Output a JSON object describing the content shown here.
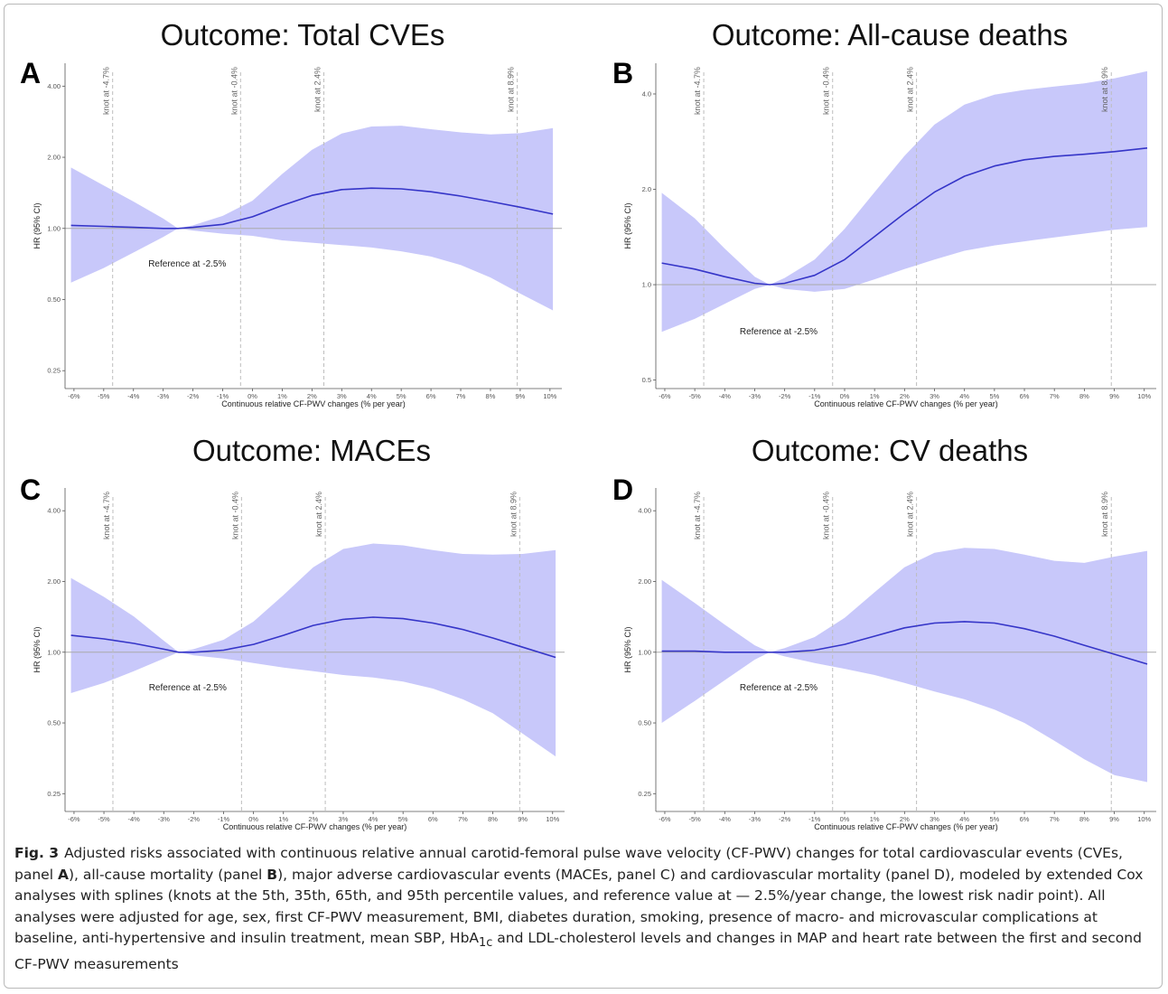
{
  "colors": {
    "band": "#c8c8fa",
    "line": "#3535c8",
    "ref_line": "#aaaaaa",
    "knot_line": "#bdbdbd",
    "axis": "#555555"
  },
  "chart_data": [
    {
      "panel_letter": "A",
      "title": "Outcome: Total CVEs",
      "type": "line",
      "xlabel": "Continuous relative CF-PWV changes (% per year)",
      "ylabel": "HR (95% CI)",
      "x_ticks": [
        "-6%",
        "-5%",
        "-4%",
        "-3%",
        "-2%",
        "-1%",
        "0%",
        "1%",
        "2%",
        "3%",
        "4%",
        "5%",
        "6%",
        "7%",
        "8%",
        "9%",
        "10%"
      ],
      "y_ticks": [
        "0.25",
        "0.50",
        "1.00",
        "2.00",
        "4.00"
      ],
      "y_tick_values": [
        0.25,
        0.5,
        1.0,
        2.0,
        4.0
      ],
      "xlim": [
        -6.3,
        10.4
      ],
      "ylim": [
        0.21,
        5.0
      ],
      "y_scale": "log",
      "knots": [
        -4.7,
        -0.4,
        2.4,
        8.9
      ],
      "knot_labels": [
        "knot at -4.7%",
        "knot at -0.4%",
        "knot at 2.4%",
        "knot at 8.9%"
      ],
      "reference_x": -2.5,
      "reference_y": 1.0,
      "reference_label": "Reference at -2.5%",
      "x": [
        -6.1,
        -5,
        -4,
        -3,
        -2.5,
        -2,
        -1,
        0,
        1,
        2,
        3,
        4,
        5,
        6,
        7,
        8,
        9,
        10.1
      ],
      "hr": [
        1.03,
        1.02,
        1.01,
        1.0,
        1.0,
        1.01,
        1.04,
        1.12,
        1.25,
        1.38,
        1.46,
        1.48,
        1.47,
        1.43,
        1.37,
        1.3,
        1.23,
        1.15
      ],
      "lower": [
        0.59,
        0.68,
        0.79,
        0.92,
        1.0,
        0.98,
        0.95,
        0.93,
        0.89,
        0.87,
        0.85,
        0.83,
        0.8,
        0.76,
        0.7,
        0.62,
        0.53,
        0.45
      ],
      "upper": [
        1.81,
        1.52,
        1.3,
        1.1,
        1.0,
        1.03,
        1.13,
        1.31,
        1.7,
        2.15,
        2.52,
        2.7,
        2.72,
        2.63,
        2.55,
        2.5,
        2.53,
        2.66
      ]
    },
    {
      "panel_letter": "B",
      "title": "Outcome: All-cause deaths",
      "type": "line",
      "xlabel": "Continuous relative CF-PWV changes (% per year)",
      "ylabel": "HR (95% CI)",
      "x_ticks": [
        "-6%",
        "-5%",
        "-4%",
        "-3%",
        "-2%",
        "-1%",
        "0%",
        "1%",
        "2%",
        "3%",
        "4%",
        "5%",
        "6%",
        "7%",
        "8%",
        "9%",
        "10%"
      ],
      "y_ticks": [
        "0.5",
        "1.0",
        "2.0",
        "4.0"
      ],
      "y_tick_values": [
        0.5,
        1.0,
        2.0,
        4.0
      ],
      "xlim": [
        -6.3,
        10.4
      ],
      "ylim": [
        0.47,
        5.0
      ],
      "y_scale": "log",
      "knots": [
        -4.7,
        -0.4,
        2.4,
        8.9
      ],
      "knot_labels": [
        "knot at -4.7%",
        "knot at -0.4%",
        "knot at 2.4%",
        "knot at 8.9%"
      ],
      "reference_x": -2.5,
      "reference_y": 1.0,
      "reference_label": "Reference at -2.5%",
      "x": [
        -6.1,
        -5,
        -4,
        -3,
        -2.5,
        -2,
        -1,
        0,
        1,
        2,
        3,
        4,
        5,
        6,
        7,
        8,
        9,
        10.1
      ],
      "hr": [
        1.17,
        1.12,
        1.06,
        1.01,
        1.0,
        1.01,
        1.07,
        1.2,
        1.42,
        1.68,
        1.96,
        2.2,
        2.37,
        2.48,
        2.54,
        2.58,
        2.63,
        2.7
      ],
      "lower": [
        0.71,
        0.78,
        0.87,
        0.97,
        1.0,
        0.97,
        0.95,
        0.97,
        1.04,
        1.12,
        1.2,
        1.28,
        1.33,
        1.37,
        1.41,
        1.45,
        1.49,
        1.52
      ],
      "upper": [
        1.95,
        1.62,
        1.3,
        1.06,
        1.0,
        1.05,
        1.2,
        1.5,
        1.96,
        2.55,
        3.2,
        3.7,
        3.98,
        4.12,
        4.22,
        4.32,
        4.48,
        4.72
      ]
    },
    {
      "panel_letter": "C",
      "title": "Outcome: MACEs",
      "type": "line",
      "xlabel": "Continuous relative CF-PWV changes (% per year)",
      "ylabel": "HR (95% CI)",
      "x_ticks": [
        "-6%",
        "-5%",
        "-4%",
        "-3%",
        "-2%",
        "-1%",
        "0%",
        "1%",
        "2%",
        "3%",
        "4%",
        "5%",
        "6%",
        "7%",
        "8%",
        "9%",
        "10%"
      ],
      "y_ticks": [
        "0.25",
        "0.50",
        "1.00",
        "2.00",
        "4.00"
      ],
      "y_tick_values": [
        0.25,
        0.5,
        1.0,
        2.0,
        4.0
      ],
      "xlim": [
        -6.3,
        10.4
      ],
      "ylim": [
        0.21,
        5.0
      ],
      "y_scale": "log",
      "knots": [
        -4.7,
        -0.4,
        2.4,
        8.9
      ],
      "knot_labels": [
        "knot at -4.7%",
        "knot at -0.4%",
        "knot at 2.4%",
        "knot at 8.9%"
      ],
      "reference_x": -2.5,
      "reference_y": 1.0,
      "reference_label": "Reference at -2.5%",
      "x": [
        -6.1,
        -5,
        -4,
        -3,
        -2.5,
        -2,
        -1,
        0,
        1,
        2,
        3,
        4,
        5,
        6,
        7,
        8,
        9,
        10.1
      ],
      "hr": [
        1.18,
        1.14,
        1.09,
        1.03,
        1.0,
        1.0,
        1.02,
        1.08,
        1.18,
        1.3,
        1.38,
        1.41,
        1.39,
        1.33,
        1.25,
        1.15,
        1.05,
        0.95
      ],
      "lower": [
        0.67,
        0.74,
        0.83,
        0.94,
        1.0,
        0.97,
        0.94,
        0.9,
        0.86,
        0.83,
        0.8,
        0.78,
        0.75,
        0.7,
        0.63,
        0.55,
        0.45,
        0.36
      ],
      "upper": [
        2.07,
        1.72,
        1.42,
        1.12,
        1.0,
        1.03,
        1.13,
        1.35,
        1.75,
        2.3,
        2.75,
        2.9,
        2.85,
        2.72,
        2.62,
        2.6,
        2.62,
        2.72
      ]
    },
    {
      "panel_letter": "D",
      "title": "Outcome: CV deaths",
      "type": "line",
      "xlabel": "Continuous relative CF-PWV changes (% per year)",
      "ylabel": "HR (95% CI)",
      "x_ticks": [
        "-6%",
        "-5%",
        "-4%",
        "-3%",
        "-2%",
        "-1%",
        "0%",
        "1%",
        "2%",
        "3%",
        "4%",
        "5%",
        "6%",
        "7%",
        "8%",
        "9%",
        "10%"
      ],
      "y_ticks": [
        "0.25",
        "0.50",
        "1.00",
        "2.00",
        "4.00"
      ],
      "y_tick_values": [
        0.25,
        0.5,
        1.0,
        2.0,
        4.0
      ],
      "xlim": [
        -6.3,
        10.4
      ],
      "ylim": [
        0.21,
        5.0
      ],
      "y_scale": "log",
      "knots": [
        -4.7,
        -0.4,
        2.4,
        8.9
      ],
      "knot_labels": [
        "knot at -4.7%",
        "knot at -0.4%",
        "knot at 2.4%",
        "knot at 8.9%"
      ],
      "reference_x": -2.5,
      "reference_y": 1.0,
      "reference_label": "Reference at -2.5%",
      "x": [
        -6.1,
        -5,
        -4,
        -3,
        -2.5,
        -2,
        -1,
        0,
        1,
        2,
        3,
        4,
        5,
        6,
        7,
        8,
        9,
        10.1
      ],
      "hr": [
        1.01,
        1.01,
        1.0,
        1.0,
        1.0,
        1.0,
        1.02,
        1.08,
        1.17,
        1.27,
        1.33,
        1.35,
        1.33,
        1.26,
        1.17,
        1.07,
        0.98,
        0.89
      ],
      "lower": [
        0.5,
        0.62,
        0.76,
        0.93,
        1.0,
        0.96,
        0.9,
        0.85,
        0.8,
        0.74,
        0.68,
        0.63,
        0.57,
        0.5,
        0.42,
        0.35,
        0.3,
        0.28
      ],
      "upper": [
        2.03,
        1.62,
        1.31,
        1.07,
        1.0,
        1.04,
        1.16,
        1.4,
        1.8,
        2.3,
        2.65,
        2.78,
        2.75,
        2.6,
        2.45,
        2.4,
        2.55,
        2.7
      ]
    }
  ],
  "caption": {
    "fig_label": "Fig. 3",
    "text_1": "Adjusted risks associated with continuous relative annual carotid-femoral pulse wave velocity (CF-PWV) changes for total cardiovascular events (CVEs, panel ",
    "bold_a": "A",
    "text_2": "), all-cause mortality (panel ",
    "bold_b": "B",
    "text_3": "), major adverse cardiovascular events (MACEs, panel C) and cardiovascular mortality (panel D), modeled by extended Cox analyses with splines (knots at the 5th, 35th, 65th, and 95th percentile values, and reference value at — 2.5%/year change, the lowest risk nadir point). All analyses were adjusted for age, sex, first CF-PWV measurement, BMI, diabetes duration, smoking, presence of macro- and microvascular complications at baseline, anti-hypertensive and insulin treatment, mean SBP, HbA",
    "sub_1c": "1c",
    "text_4": " and LDL-cholesterol levels and changes in MAP and heart rate between the first and second CF-PWV measurements"
  }
}
